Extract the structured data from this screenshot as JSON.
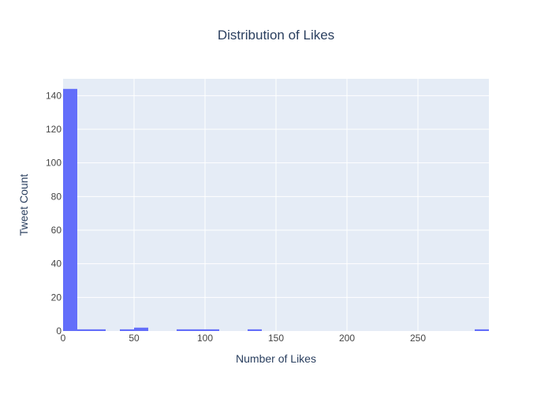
{
  "chart_data": {
    "type": "bar",
    "title": "Distribution of Likes",
    "xlabel": "Number of Likes",
    "ylabel": "Tweet Count",
    "xlim": [
      0,
      300
    ],
    "ylim": [
      0,
      150
    ],
    "x_ticks": [
      0,
      50,
      100,
      150,
      200,
      250
    ],
    "y_ticks": [
      0,
      20,
      40,
      60,
      80,
      100,
      120,
      140
    ],
    "grid": true,
    "bin_width": 10,
    "bins": [
      {
        "x0": 0,
        "x1": 10,
        "count": 144
      },
      {
        "x0": 10,
        "x1": 20,
        "count": 1
      },
      {
        "x0": 20,
        "x1": 30,
        "count": 1
      },
      {
        "x0": 40,
        "x1": 50,
        "count": 1
      },
      {
        "x0": 50,
        "x1": 60,
        "count": 2
      },
      {
        "x0": 80,
        "x1": 90,
        "count": 1
      },
      {
        "x0": 90,
        "x1": 100,
        "count": 1
      },
      {
        "x0": 100,
        "x1": 110,
        "count": 1
      },
      {
        "x0": 130,
        "x1": 140,
        "count": 1
      },
      {
        "x0": 290,
        "x1": 300,
        "count": 1
      }
    ],
    "colors": {
      "bar": "#636efa",
      "plot_bg": "#e5ecf6",
      "grid": "#ffffff",
      "text": "#2a3f5f",
      "tick_text": "#444444"
    }
  }
}
